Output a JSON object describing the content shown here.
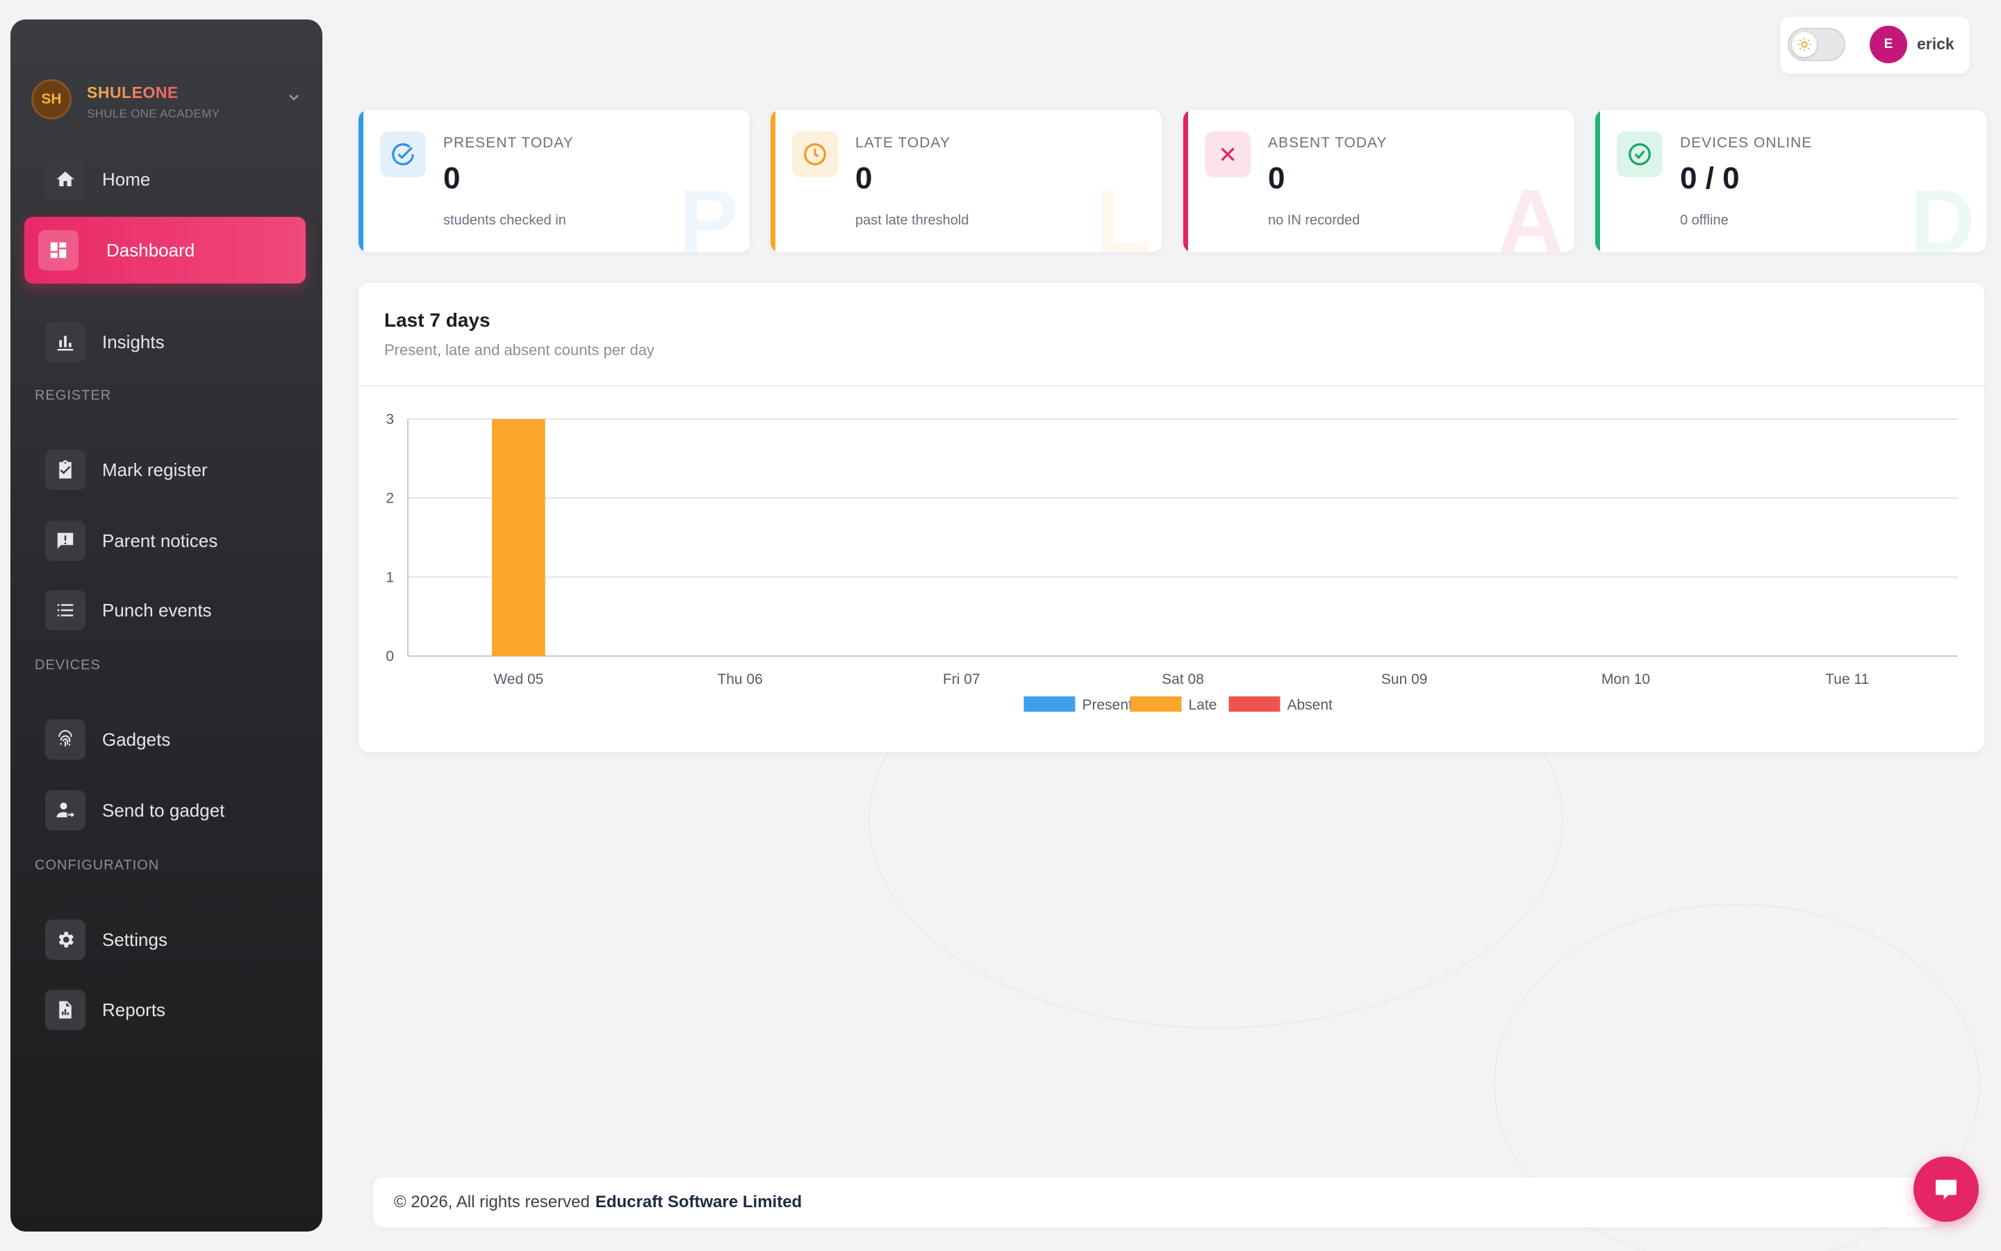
{
  "brand": {
    "initials": "SH",
    "name": "SHULEONE",
    "subtitle": "SHULE ONE ACADEMY"
  },
  "nav": {
    "home": "Home",
    "dashboard": "Dashboard",
    "insights": "Insights",
    "section_register": "REGISTER",
    "mark_register": "Mark register",
    "parent_notices": "Parent notices",
    "punch_events": "Punch events",
    "section_devices": "DEVICES",
    "gadgets": "Gadgets",
    "send_to_gadget": "Send to gadget",
    "section_configuration": "CONFIGURATION",
    "settings": "Settings",
    "reports": "Reports"
  },
  "user": {
    "initial": "E",
    "name": "erick"
  },
  "stats": [
    {
      "title": "PRESENT TODAY",
      "value": "0",
      "sub": "students checked in",
      "watermark": "P",
      "color": "#2f9be8"
    },
    {
      "title": "LATE TODAY",
      "value": "0",
      "sub": "past late threshold",
      "watermark": "L",
      "color": "#f5a623"
    },
    {
      "title": "ABSENT TODAY",
      "value": "0",
      "sub": "no IN recorded",
      "watermark": "A",
      "color": "#e0245e"
    },
    {
      "title": "DEVICES ONLINE",
      "value": "0 / 0",
      "sub": "0 offline",
      "watermark": "D",
      "color": "#1fb57a"
    }
  ],
  "panel": {
    "title": "Last 7 days",
    "subtitle": "Present, late and absent counts per day"
  },
  "chart_data": {
    "type": "bar",
    "categories": [
      "Wed 05",
      "Thu 06",
      "Fri 07",
      "Sat 08",
      "Sun 09",
      "Mon 10",
      "Tue 11"
    ],
    "series": [
      {
        "name": "Present",
        "color": "#3f9fea",
        "values": [
          0,
          0,
          0,
          0,
          0,
          0,
          0
        ]
      },
      {
        "name": "Late",
        "color": "#f9a62b",
        "values": [
          3,
          0,
          0,
          0,
          0,
          0,
          0
        ]
      },
      {
        "name": "Absent",
        "color": "#ef5350",
        "values": [
          0,
          0,
          0,
          0,
          0,
          0,
          0
        ]
      }
    ],
    "ylim": [
      0,
      3
    ],
    "yticks": [
      0,
      1,
      2,
      3
    ],
    "grid": true,
    "legend": "bottom-center"
  },
  "footer": {
    "text": "© 2026, All rights reserved",
    "company": "Educraft Software Limited"
  }
}
